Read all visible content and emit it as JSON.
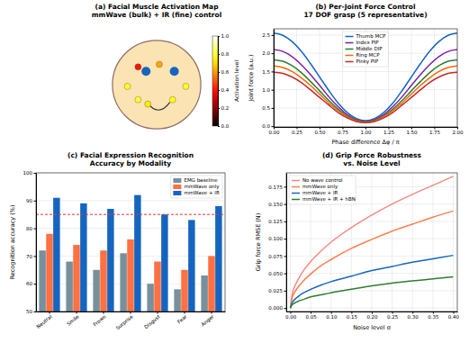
{
  "chart_data": [
    {
      "type": "scatter",
      "title": "(a) Facial Muscle Activation Map",
      "subtitle": "mmWave (bulk) + IR (fine) control",
      "x": [
        -0.42,
        0.06,
        -0.66,
        0.66,
        -0.42,
        -0.2,
        0.36
      ],
      "values": [
        0.4,
        0.46,
        -0.04,
        -0.04,
        -0.34,
        -0.44,
        -0.34
      ],
      "activation": [
        0.4,
        0.62,
        0.78,
        0.78,
        0.8,
        0.72,
        0.76
      ],
      "xlim": [
        -1.1,
        1.1
      ],
      "ylim": [
        -1.1,
        1.1
      ],
      "tick_labels": false,
      "colorbar": {
        "label": "Activation level",
        "range": [
          0,
          1
        ],
        "ticks": [
          {
            "value": 0,
            "label": "0.0"
          },
          0.2,
          0.4,
          0.6,
          0.8,
          {
            "value": 1,
            "label": "1.0"
          }
        ]
      }
    },
    {
      "type": "line",
      "title": "(b) Per-Joint Force Control",
      "subtitle": "17 DOF grasp (5 representative)",
      "x_label": "Phase difference Δφ / π",
      "y_label": "Joint force (a.u.)",
      "x": [
        0,
        0.1,
        0.2,
        0.3,
        0.4,
        0.5,
        0.6,
        0.7,
        0.8,
        0.9,
        1.0,
        1.1,
        1.2,
        1.3,
        1.4,
        1.5,
        1.6,
        1.7,
        1.8,
        1.9,
        2.0
      ],
      "series": [
        {
          "name": "Thumb MCP",
          "color": "#1565c0",
          "values": [
            2.55,
            2.49,
            2.32,
            2.06,
            1.72,
            1.35,
            0.98,
            0.64,
            0.38,
            0.21,
            0.15,
            0.21,
            0.38,
            0.64,
            0.98,
            1.35,
            1.72,
            2.06,
            2.32,
            2.49,
            2.55
          ]
        },
        {
          "name": "Index PIP",
          "color": "#7b1fa2",
          "values": [
            2.1,
            2.05,
            1.91,
            1.69,
            1.42,
            1.12,
            0.81,
            0.54,
            0.32,
            0.18,
            0.13,
            0.18,
            0.32,
            0.54,
            0.81,
            1.12,
            1.42,
            1.69,
            1.91,
            2.05,
            2.1
          ]
        },
        {
          "name": "Middle DIP",
          "color": "#2e7d32",
          "values": [
            1.82,
            1.78,
            1.66,
            1.47,
            1.23,
            0.97,
            0.71,
            0.47,
            0.28,
            0.16,
            0.12,
            0.16,
            0.28,
            0.47,
            0.71,
            0.97,
            1.23,
            1.47,
            1.66,
            1.78,
            1.82
          ]
        },
        {
          "name": "Ring MCP",
          "color": "#ef6c00",
          "values": [
            1.65,
            1.61,
            1.5,
            1.33,
            1.12,
            0.88,
            0.64,
            0.43,
            0.26,
            0.15,
            0.11,
            0.15,
            0.26,
            0.43,
            0.64,
            0.88,
            1.12,
            1.33,
            1.5,
            1.61,
            1.65
          ]
        },
        {
          "name": "Pinky PIP",
          "color": "#c62828",
          "values": [
            1.48,
            1.45,
            1.35,
            1.2,
            1.0,
            0.79,
            0.58,
            0.38,
            0.23,
            0.13,
            0.1,
            0.13,
            0.23,
            0.38,
            0.58,
            0.79,
            1.0,
            1.2,
            1.35,
            1.45,
            1.48
          ]
        }
      ],
      "xlim": [
        0,
        2
      ],
      "ylim": [
        -0.02,
        2.67
      ],
      "xticks": [
        {
          "value": 0,
          "label": "0.00"
        },
        0.25,
        {
          "value": 0.5,
          "label": "0.50"
        },
        0.75,
        {
          "value": 1,
          "label": "1.00"
        },
        1.25,
        {
          "value": 1.5,
          "label": "1.50"
        },
        1.75,
        {
          "value": 2,
          "label": "2.00"
        }
      ],
      "yticks": [
        {
          "value": 0,
          "label": "0.0"
        },
        0.5,
        {
          "value": 1,
          "label": "1.0"
        },
        1.5,
        {
          "value": 2,
          "label": "2.0"
        },
        2.5
      ],
      "grid": true,
      "legend": "top"
    },
    {
      "type": "bar",
      "title": "(c) Facial Expression Recognition",
      "subtitle": "Accuracy by Modality",
      "y_label": "Recognition accuracy (%)",
      "categories": [
        "Neutral",
        "Smile",
        "Frown",
        "Surprise",
        "Disgust",
        "Fear",
        "Anger"
      ],
      "series": [
        {
          "name": "EMG baseline",
          "color": "#78909c",
          "values": [
            72,
            68,
            65,
            71,
            60,
            58,
            63
          ]
        },
        {
          "name": "mmWave only",
          "color": "#ff7043",
          "values": [
            78,
            74,
            72,
            76,
            68,
            65,
            70
          ]
        },
        {
          "name": "mmWave + IR",
          "color": "#1565c0",
          "values": [
            91,
            89,
            87,
            92,
            85,
            83,
            88
          ]
        }
      ],
      "reference_lines": [
        {
          "value": 85,
          "color": "#e53935",
          "line_style": "dashed"
        }
      ],
      "ylim": [
        50,
        100
      ],
      "yticks": [
        50,
        60,
        70,
        80,
        90,
        100
      ],
      "grid": true,
      "legend": "upper right"
    },
    {
      "type": "line",
      "title": "(d) Grip Force Robustness",
      "subtitle": "vs. Noise Level",
      "x_label": "Noise level σ",
      "y_label": "Grip force RMSE (N)",
      "x": [
        0,
        0.005,
        0.01,
        0.02,
        0.03,
        0.05,
        0.075,
        0.1,
        0.15,
        0.2,
        0.25,
        0.3,
        0.35,
        0.4
      ],
      "series": [
        {
          "name": "No wave control",
          "color": "#f28b82",
          "values": [
            0,
            0.021,
            0.03,
            0.042,
            0.052,
            0.067,
            0.082,
            0.095,
            0.116,
            0.134,
            0.15,
            0.164,
            0.177,
            0.19
          ]
        },
        {
          "name": "mmWave only",
          "color": "#ff7f50",
          "values": [
            0,
            0.016,
            0.022,
            0.031,
            0.038,
            0.049,
            0.061,
            0.07,
            0.086,
            0.099,
            0.111,
            0.121,
            0.131,
            0.14
          ]
        },
        {
          "name": "mmWave + IR",
          "color": "#1565c0",
          "values": [
            0,
            0.008,
            0.012,
            0.017,
            0.021,
            0.027,
            0.033,
            0.038,
            0.046,
            0.054,
            0.06,
            0.066,
            0.071,
            0.076
          ]
        },
        {
          "name": "mmWave + IR + hBN",
          "color": "#2e7d32",
          "values": [
            0,
            0.005,
            0.007,
            0.01,
            0.012,
            0.016,
            0.019,
            0.022,
            0.027,
            0.032,
            0.036,
            0.039,
            0.042,
            0.045
          ]
        }
      ],
      "xlim": [
        -0.01,
        0.41
      ],
      "ylim": [
        -0.005,
        0.195
      ],
      "xticks": [
        {
          "value": 0,
          "label": "0.00"
        },
        0.05,
        {
          "value": 0.1,
          "label": "0.10"
        },
        0.15,
        {
          "value": 0.2,
          "label": "0.20"
        },
        0.25,
        {
          "value": 0.3,
          "label": "0.30"
        },
        0.35,
        {
          "value": 0.4,
          "label": "0.40"
        }
      ],
      "yticks": [
        {
          "value": 0,
          "label": "0.000"
        },
        0.025,
        {
          "value": 0.05,
          "label": "0.050"
        },
        0.075,
        {
          "value": 0.1,
          "label": "0.100"
        },
        0.125,
        {
          "value": 0.15,
          "label": "0.150"
        },
        0.175
      ],
      "grid": true,
      "legend": "upper left"
    }
  ]
}
